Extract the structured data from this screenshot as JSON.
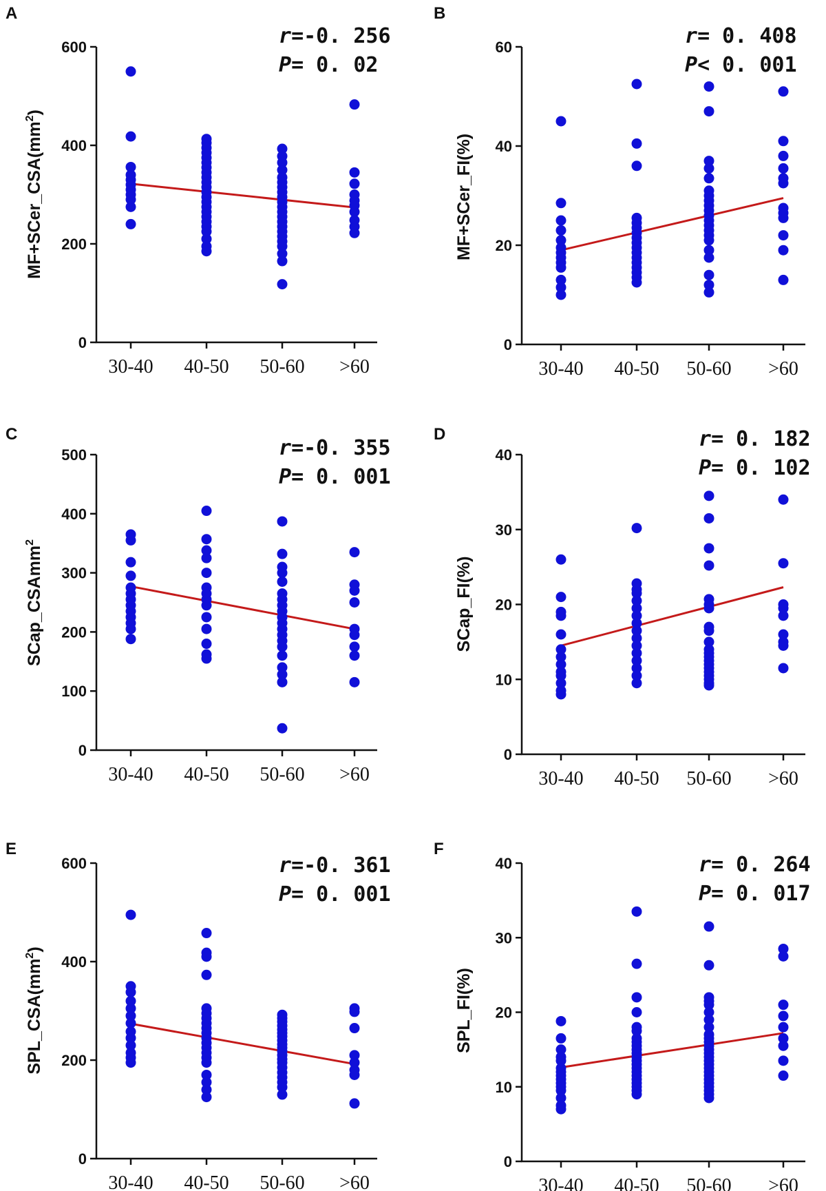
{
  "chart_data": [
    {
      "panel": "A",
      "type": "scatter",
      "ylabel": "MF+SCer_CSA(mm",
      "ylabel_sup": "2",
      "ylabel_end": ")",
      "ylim": [
        0,
        600
      ],
      "yticks": [
        0,
        200,
        400,
        600
      ],
      "categories": [
        "30-40",
        "40-50",
        "50-60",
        ">60"
      ],
      "stats": {
        "r_key": "r",
        "r_val": "=-0. 256",
        "p_key": "P",
        "p_val": "= 0. 02"
      },
      "regression": [
        322,
        306,
        290,
        274
      ],
      "points": [
        [
          550,
          418,
          356,
          340,
          330,
          320,
          310,
          300,
          290,
          275,
          240
        ],
        [
          413,
          405,
          395,
          385,
          375,
          365,
          355,
          345,
          335,
          325,
          315,
          305,
          295,
          285,
          275,
          265,
          255,
          245,
          235,
          225,
          210,
          195,
          185
        ],
        [
          393,
          378,
          365,
          350,
          335,
          325,
          315,
          305,
          295,
          285,
          275,
          265,
          255,
          245,
          235,
          225,
          215,
          205,
          195,
          180,
          165,
          118
        ],
        [
          483,
          345,
          322,
          300,
          288,
          278,
          265,
          248,
          235,
          222
        ]
      ]
    },
    {
      "panel": "B",
      "type": "scatter",
      "ylabel": "MF+SCer_FI(%)",
      "ylim": [
        0,
        60
      ],
      "yticks": [
        0,
        20,
        40,
        60
      ],
      "categories": [
        "30-40",
        "40-50",
        "50-60",
        ">60"
      ],
      "stats": {
        "r_key": "r",
        "r_val": "= 0. 408",
        "p_key": "P",
        "p_val": "< 0. 001"
      },
      "regression": [
        19,
        22.5,
        26,
        29.5
      ],
      "points": [
        [
          45,
          28.5,
          25,
          23,
          21,
          19.5,
          18.5,
          17.5,
          16.5,
          15.5,
          13,
          11.5,
          10
        ],
        [
          52.5,
          40.5,
          36,
          25.5,
          24.5,
          23.5,
          22.5,
          21.5,
          20.5,
          19.5,
          18.5,
          17.5,
          16.5,
          15.5,
          14.5,
          13.5,
          12.5
        ],
        [
          52,
          47,
          37,
          35.5,
          33.5,
          31,
          30,
          29,
          28,
          27,
          26,
          25,
          24,
          23,
          22,
          21,
          19,
          17.5,
          14,
          12,
          10.5
        ],
        [
          51,
          41,
          38,
          35.5,
          33.5,
          32.5,
          27.5,
          26.5,
          25.5,
          22,
          19,
          13
        ]
      ]
    },
    {
      "panel": "C",
      "type": "scatter",
      "ylabel": "SCap_CSAmm",
      "ylabel_sup": "2",
      "ylabel_end": "",
      "ylim": [
        0,
        500
      ],
      "yticks": [
        0,
        100,
        200,
        300,
        400,
        500
      ],
      "categories": [
        "30-40",
        "40-50",
        "50-60",
        ">60"
      ],
      "stats": {
        "r_key": "r",
        "r_val": "=-0. 355",
        "p_key": "P",
        "p_val": "= 0. 001"
      },
      "regression": [
        277,
        253,
        229,
        205
      ],
      "points": [
        [
          365,
          355,
          318,
          295,
          275,
          265,
          255,
          245,
          235,
          225,
          215,
          205,
          188
        ],
        [
          405,
          357,
          338,
          325,
          300,
          275,
          265,
          255,
          245,
          225,
          205,
          180,
          162,
          155
        ],
        [
          387,
          332,
          310,
          300,
          285,
          265,
          255,
          245,
          235,
          225,
          215,
          205,
          195,
          185,
          175,
          160,
          140,
          128,
          115,
          37
        ],
        [
          335,
          280,
          270,
          250,
          205,
          195,
          175,
          160,
          115
        ]
      ]
    },
    {
      "panel": "D",
      "type": "scatter",
      "ylabel": "SCap_FI(%)",
      "ylim": [
        0,
        40
      ],
      "yticks": [
        0,
        10,
        20,
        30,
        40
      ],
      "categories": [
        "30-40",
        "40-50",
        "50-60",
        ">60"
      ],
      "stats": {
        "r_key": "r",
        "r_val": "= 0. 182",
        "p_key": "P",
        "p_val": "= 0. 102"
      },
      "regression": [
        14.5,
        17.1,
        19.7,
        22.3
      ],
      "points": [
        [
          26,
          21,
          19,
          18.5,
          16,
          14,
          13,
          12,
          11,
          10.5,
          9.5,
          8.5,
          8
        ],
        [
          30.2,
          22.8,
          22,
          21.5,
          20.5,
          19.5,
          18.5,
          17.5,
          16.5,
          15.5,
          14.5,
          13.5,
          12.5,
          11.5,
          10.5,
          9.5
        ],
        [
          34.5,
          31.5,
          27.5,
          25.2,
          20.7,
          20,
          19.5,
          17,
          16.5,
          15,
          14,
          13.5,
          13,
          12.5,
          12,
          11.5,
          11,
          10.5,
          10,
          9.5,
          9.2
        ],
        [
          34,
          25.5,
          20,
          19.5,
          18.5,
          16,
          15,
          14.5,
          11.5
        ]
      ]
    },
    {
      "panel": "E",
      "type": "scatter",
      "ylabel": "SPL_CSA(mm",
      "ylabel_sup": "2",
      "ylabel_end": ")",
      "ylim": [
        0,
        600
      ],
      "yticks": [
        0,
        200,
        400,
        600
      ],
      "categories": [
        "30-40",
        "40-50",
        "50-60",
        ">60"
      ],
      "stats": {
        "r_key": "r",
        "r_val": "=-0. 361",
        "p_key": "P",
        "p_val": "= 0. 001"
      },
      "regression": [
        274,
        247,
        220,
        192
      ],
      "points": [
        [
          495,
          350,
          338,
          320,
          305,
          290,
          275,
          258,
          245,
          230,
          215,
          205,
          195
        ],
        [
          458,
          418,
          410,
          373,
          305,
          295,
          285,
          275,
          265,
          255,
          245,
          235,
          225,
          215,
          205,
          195,
          170,
          155,
          140,
          125
        ],
        [
          292,
          285,
          278,
          270,
          262,
          255,
          248,
          240,
          232,
          225,
          218,
          210,
          202,
          195,
          185,
          175,
          165,
          155,
          145,
          130
        ],
        [
          305,
          298,
          265,
          210,
          195,
          180,
          170,
          112
        ]
      ]
    },
    {
      "panel": "F",
      "type": "scatter",
      "ylabel": "SPL_FI(%)",
      "ylim": [
        0,
        40
      ],
      "yticks": [
        0,
        10,
        20,
        30,
        40
      ],
      "categories": [
        "30-40",
        "40-50",
        "50-60",
        ">60"
      ],
      "stats": {
        "r_key": "r",
        "r_val": "= 0. 264",
        "p_key": "P",
        "p_val": "= 0. 017"
      },
      "regression": [
        12.6,
        14.1,
        15.6,
        17.2
      ],
      "points": [
        [
          18.8,
          16.5,
          15,
          14,
          13.5,
          12.5,
          12,
          11.5,
          11,
          10.5,
          10,
          9.5,
          8.5,
          7.5,
          7
        ],
        [
          33.5,
          26.5,
          22,
          20,
          18,
          17.5,
          16.5,
          16,
          15.5,
          15,
          14.5,
          14,
          13.5,
          13,
          12.5,
          12,
          11.5,
          11,
          10.5,
          10,
          9.5,
          9
        ],
        [
          31.5,
          26.3,
          22,
          21.5,
          21,
          20,
          19,
          18,
          17,
          16.5,
          16,
          15.5,
          15,
          14.5,
          14,
          13.5,
          13,
          12.5,
          12,
          11.5,
          11,
          10.5,
          10,
          9.5,
          9,
          8.5
        ],
        [
          28.5,
          27.5,
          21,
          19.5,
          18,
          16.5,
          15.5,
          13.5,
          11.5
        ]
      ]
    }
  ]
}
